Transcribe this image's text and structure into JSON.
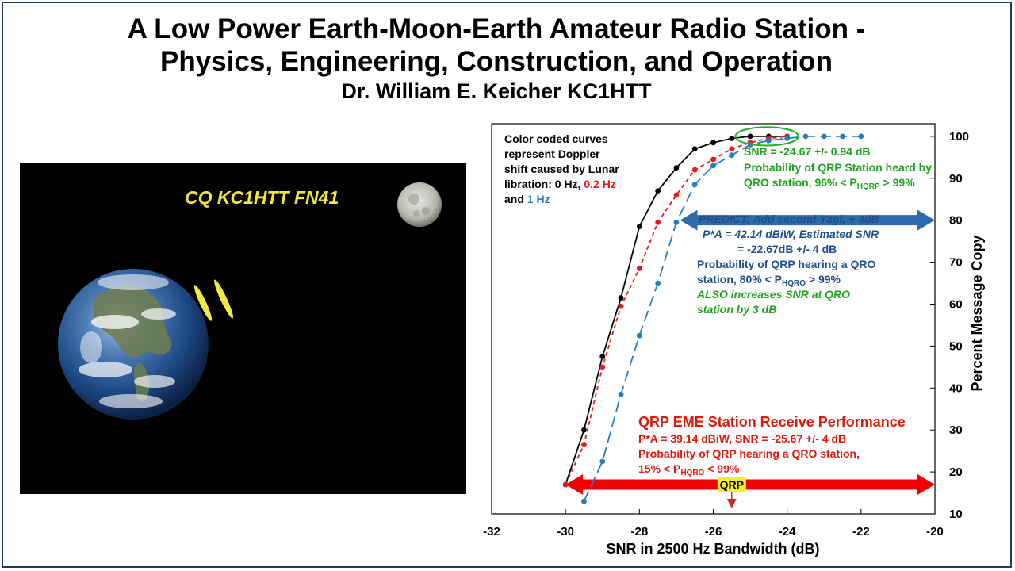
{
  "slide": {
    "title_line1": "A Low Power Earth-Moon-Earth Amateur Radio Station -",
    "title_line2": "Physics, Engineering, Construction, and Operation",
    "author": "Dr. William E. Keicher KC1HTT"
  },
  "photo": {
    "callsign_text": "CQ KC1HTT FN41",
    "elements": [
      "earth-icon",
      "moon-icon",
      "radio-wave-icon"
    ],
    "text_color": "#f2e640"
  },
  "chart_data": {
    "type": "line",
    "xlabel": "SNR in 2500 Hz Bandwidth (dB)",
    "ylabel": "Percent Message Copy",
    "xlim": [
      -32,
      -20
    ],
    "ylim": [
      10,
      103
    ],
    "x_ticks": [
      -32,
      -30,
      -28,
      -26,
      -24,
      -22,
      -20
    ],
    "y_ticks": [
      10,
      20,
      30,
      40,
      50,
      60,
      70,
      80,
      90,
      100
    ],
    "y_axis_side": "right",
    "grid": false,
    "series": [
      {
        "name": "0 Hz",
        "color": "#000000",
        "style": "solid",
        "points": [
          [
            -30,
            17
          ],
          [
            -29.5,
            30
          ],
          [
            -29,
            47.5
          ],
          [
            -28.5,
            61.5
          ],
          [
            -28,
            78.5
          ],
          [
            -27.5,
            87
          ],
          [
            -27,
            92.5
          ],
          [
            -26.5,
            97
          ],
          [
            -26,
            98.5
          ],
          [
            -25.5,
            99.5
          ],
          [
            -25,
            100
          ],
          [
            -24.5,
            100
          ],
          [
            -24,
            100
          ]
        ]
      },
      {
        "name": "0.2 Hz",
        "color": "#e31a1c",
        "style": "short-dash",
        "points": [
          [
            -30,
            17
          ],
          [
            -29.5,
            26.5
          ],
          [
            -29,
            45
          ],
          [
            -28.5,
            59.5
          ],
          [
            -28,
            68.5
          ],
          [
            -27.5,
            79.5
          ],
          [
            -27,
            86
          ],
          [
            -26.5,
            92
          ],
          [
            -26,
            94.5
          ],
          [
            -25.5,
            97
          ],
          [
            -25,
            98.5
          ],
          [
            -24.5,
            99.5
          ],
          [
            -24,
            100
          ]
        ]
      },
      {
        "name": "1 Hz",
        "color": "#2b7bbf",
        "style": "long-dash",
        "points": [
          [
            -29.5,
            13
          ],
          [
            -29,
            22.5
          ],
          [
            -28.5,
            38.5
          ],
          [
            -28,
            52.5
          ],
          [
            -27.5,
            65
          ],
          [
            -27,
            79.5
          ],
          [
            -26.5,
            88.5
          ],
          [
            -26,
            93
          ],
          [
            -25.5,
            95.5
          ],
          [
            -25,
            98
          ],
          [
            -24.5,
            99
          ],
          [
            -24,
            99.5
          ],
          [
            -23.5,
            100
          ],
          [
            -23,
            100
          ],
          [
            -22.5,
            100
          ],
          [
            -22,
            100
          ]
        ]
      }
    ],
    "legend_note": {
      "line1": "Color coded curves",
      "line2": "represent Doppler",
      "line3": "shift caused by Lunar",
      "line4_prefix": "libration: 0 Hz, ",
      "line4_red": "0.2 Hz",
      "line5_prefix": "and ",
      "line5_blue": "1 Hz",
      "red_color": "#e31a1c",
      "blue_color": "#2b7bbf"
    },
    "annotations": {
      "qro_block": {
        "color": "#1fa21f",
        "line1": "SNR =  -24.67 +/- 0.94 dB",
        "line2": "Probability of QRP Station heard by",
        "line3_prefix": "QRO station, 96% < P",
        "line3_sub": "HQRP",
        "line3_suffix": " > 99%"
      },
      "predict_block": {
        "color": "#1f4e8a",
        "green_color": "#1fa21f",
        "line1": "PREDICT: Add second Yagi, + 3dB",
        "line2": "P*A = 42.14 dBiW, Estimated SNR",
        "line3": "= -22.67dB +/- 4 dB",
        "line4": "Probability of QRP hearing a QRO",
        "line5_prefix": "station, 80% < P",
        "line5_sub": "HQRO",
        "line5_suffix": " > 99%",
        "line6": "ALSO increases SNR at QRO",
        "line7": "station by 3 dB"
      },
      "qrp_block": {
        "color": "#e0180c",
        "heading": "QRP EME Station Receive Performance",
        "line1": "P*A = 39.14 dBiW, SNR = -25.67 +/- 4 dB",
        "line2": "Probability of QRP hearing a QRO station,",
        "line3_prefix": "15% < P",
        "line3_sub": "HQRO",
        "line3_suffix": " < 99%"
      },
      "qrp_marker": {
        "label": "QRP",
        "x": -25.5,
        "label_bg": "#f5ef2a"
      },
      "blue_range_arrow": {
        "from": -26.9,
        "to": -20,
        "y": 80,
        "color": "#2e6aae"
      },
      "red_range_arrow": {
        "from": -30,
        "to": -20,
        "y": 17,
        "color": "#f00000"
      },
      "highlight_ellipse": {
        "cx": -24.55,
        "cy": 100,
        "rx_db": 0.85,
        "ry_pct": 2.2,
        "color": "#22b022"
      }
    }
  }
}
